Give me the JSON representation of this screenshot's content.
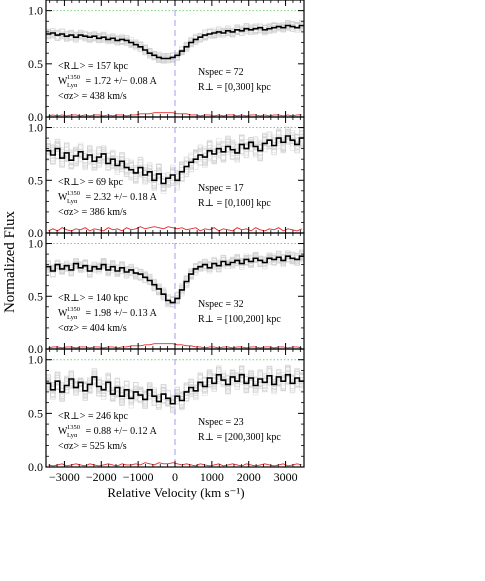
{
  "chart_data": [
    {
      "type": "line",
      "panel": 1,
      "ylabel": "Normalized Flux",
      "xlabel": "Relative Velocity (km s⁻¹)",
      "xlim": [
        -3500,
        3500
      ],
      "ylim": [
        0,
        1.1
      ],
      "yticks": [
        "0.0",
        "0.5",
        "1.0"
      ],
      "annotations": {
        "r": "<R⊥> = 157 kpc",
        "w": "W1350 = 1.72 +/− 0.08 A",
        "w_sup": "1350",
        "w_sub": "Lyα",
        "sigma": "<σz> = 438 km/s",
        "nspec": "Nspec = 72",
        "range": "R⊥ = [0,300] kpc"
      },
      "series": [
        {
          "values": [
            0.78,
            0.79,
            0.77,
            0.78,
            0.76,
            0.77,
            0.75,
            0.77,
            0.76,
            0.75,
            0.76,
            0.74,
            0.75,
            0.73,
            0.74,
            0.72,
            0.73,
            0.72,
            0.7,
            0.68,
            0.66,
            0.63,
            0.6,
            0.58,
            0.56,
            0.55,
            0.55,
            0.56,
            0.58,
            0.62,
            0.66,
            0.7,
            0.73,
            0.75,
            0.77,
            0.78,
            0.79,
            0.8,
            0.79,
            0.81,
            0.8,
            0.82,
            0.81,
            0.83,
            0.82,
            0.83,
            0.84,
            0.82,
            0.83,
            0.84,
            0.85,
            0.84,
            0.86,
            0.85,
            0.84,
            0.86
          ]
        },
        {
          "values": [
            0.01,
            0.02,
            0.01,
            0.02,
            0.01,
            0.02,
            0.02,
            0.01,
            0.02,
            0.01,
            0.02,
            0.02,
            0.01,
            0.02,
            0.01,
            0.02,
            0.02,
            0.01,
            0.02,
            0.02,
            0.03,
            0.03,
            0.03,
            0.04,
            0.04,
            0.04,
            0.04,
            0.04,
            0.03,
            0.03,
            0.03,
            0.02,
            0.02,
            0.01,
            0.02,
            0.02,
            0.01,
            0.02,
            0.01,
            0.02,
            0.02,
            0.01,
            0.02,
            0.01,
            0.02,
            0.02,
            0.01,
            0.02,
            0.01,
            0.02,
            0.02,
            0.01,
            0.02,
            0.01,
            0.02,
            0.02
          ]
        }
      ]
    },
    {
      "type": "line",
      "panel": 2,
      "ylim": [
        0,
        1.1
      ],
      "yticks": [
        "0.0",
        "0.5",
        "1.0"
      ],
      "annotations": {
        "r": "<R⊥> = 69 kpc",
        "w": "W1350 = 2.32 +/− 0.18 A",
        "w_sup": "1350",
        "w_sub": "Lyα",
        "sigma": "<σz> = 386 km/s",
        "nspec": "Nspec = 17",
        "range": "R⊥ = [0,100] kpc"
      },
      "series": [
        {
          "values": [
            0.78,
            0.74,
            0.8,
            0.71,
            0.76,
            0.69,
            0.73,
            0.77,
            0.7,
            0.74,
            0.68,
            0.72,
            0.75,
            0.66,
            0.7,
            0.64,
            0.68,
            0.62,
            0.6,
            0.57,
            0.62,
            0.55,
            0.58,
            0.5,
            0.56,
            0.47,
            0.52,
            0.55,
            0.5,
            0.58,
            0.63,
            0.67,
            0.7,
            0.74,
            0.72,
            0.78,
            0.75,
            0.8,
            0.77,
            0.82,
            0.79,
            0.76,
            0.84,
            0.8,
            0.86,
            0.82,
            0.78,
            0.85,
            0.88,
            0.83,
            0.9,
            0.86,
            0.92,
            0.88,
            0.84,
            0.9
          ]
        },
        {
          "values": [
            0.02,
            0.04,
            0.02,
            0.05,
            0.03,
            0.02,
            0.04,
            0.03,
            0.05,
            0.02,
            0.04,
            0.03,
            0.02,
            0.05,
            0.03,
            0.04,
            0.02,
            0.05,
            0.03,
            0.04,
            0.06,
            0.04,
            0.05,
            0.06,
            0.05,
            0.04,
            0.06,
            0.05,
            0.04,
            0.05,
            0.03,
            0.04,
            0.05,
            0.02,
            0.04,
            0.03,
            0.05,
            0.02,
            0.04,
            0.03,
            0.02,
            0.05,
            0.03,
            0.04,
            0.02,
            0.05,
            0.03,
            0.02,
            0.04,
            0.03,
            0.05,
            0.02,
            0.04,
            0.03,
            0.02,
            0.04
          ]
        }
      ]
    },
    {
      "type": "line",
      "panel": 3,
      "ylim": [
        0,
        1.1
      ],
      "yticks": [
        "0.0",
        "0.5",
        "1.0"
      ],
      "annotations": {
        "r": "<R⊥> = 140 kpc",
        "w": "W1350 = 1.98 +/− 0.13 A",
        "w_sup": "1350",
        "w_sub": "Lyα",
        "sigma": "<σz> = 404 km/s",
        "nspec": "Nspec = 32",
        "range": "R⊥ = [100,200] kpc"
      },
      "series": [
        {
          "values": [
            0.78,
            0.74,
            0.8,
            0.76,
            0.79,
            0.75,
            0.81,
            0.77,
            0.79,
            0.74,
            0.78,
            0.76,
            0.8,
            0.75,
            0.78,
            0.74,
            0.77,
            0.73,
            0.75,
            0.72,
            0.71,
            0.68,
            0.65,
            0.61,
            0.57,
            0.52,
            0.46,
            0.44,
            0.48,
            0.56,
            0.64,
            0.71,
            0.76,
            0.78,
            0.8,
            0.77,
            0.81,
            0.79,
            0.83,
            0.8,
            0.82,
            0.84,
            0.81,
            0.85,
            0.83,
            0.86,
            0.84,
            0.82,
            0.86,
            0.85,
            0.87,
            0.84,
            0.88,
            0.86,
            0.85,
            0.88
          ]
        },
        {
          "values": [
            0.01,
            0.02,
            0.02,
            0.01,
            0.02,
            0.02,
            0.01,
            0.02,
            0.02,
            0.01,
            0.02,
            0.02,
            0.01,
            0.02,
            0.02,
            0.01,
            0.02,
            0.02,
            0.03,
            0.03,
            0.03,
            0.04,
            0.04,
            0.05,
            0.05,
            0.05,
            0.05,
            0.05,
            0.04,
            0.04,
            0.03,
            0.03,
            0.02,
            0.02,
            0.01,
            0.02,
            0.02,
            0.01,
            0.02,
            0.02,
            0.01,
            0.02,
            0.02,
            0.01,
            0.02,
            0.02,
            0.01,
            0.02,
            0.02,
            0.01,
            0.02,
            0.02,
            0.01,
            0.02,
            0.02,
            0.01
          ]
        }
      ]
    },
    {
      "type": "line",
      "panel": 4,
      "ylim": [
        0,
        1.1
      ],
      "yticks": [
        "0.0",
        "0.5",
        "1.0"
      ],
      "xticks": [
        -3000,
        -2000,
        -1000,
        0,
        1000,
        2000,
        3000
      ],
      "xticklabels": [
        "−3000",
        "−2000",
        "−1000",
        "0",
        "1000",
        "2000",
        "3000"
      ],
      "annotations": {
        "r": "<R⊥> = 246 kpc",
        "w": "W1350 = 0.88 +/− 0.12 A",
        "w_sup": "1350",
        "w_sub": "Lyα",
        "sigma": "<σz> = 525 km/s",
        "nspec": "Nspec = 23",
        "range": "R⊥ = [200,300] kpc"
      },
      "series": [
        {
          "values": [
            0.78,
            0.72,
            0.8,
            0.7,
            0.76,
            0.82,
            0.74,
            0.79,
            0.71,
            0.77,
            0.84,
            0.75,
            0.72,
            0.79,
            0.68,
            0.74,
            0.66,
            0.72,
            0.64,
            0.7,
            0.67,
            0.63,
            0.72,
            0.66,
            0.61,
            0.68,
            0.64,
            0.59,
            0.66,
            0.62,
            0.7,
            0.74,
            0.71,
            0.79,
            0.75,
            0.83,
            0.78,
            0.86,
            0.81,
            0.77,
            0.84,
            0.8,
            0.86,
            0.78,
            0.83,
            0.76,
            0.82,
            0.79,
            0.85,
            0.77,
            0.84,
            0.8,
            0.86,
            0.78,
            0.83,
            0.8
          ]
        },
        {
          "values": [
            0.02,
            0.01,
            0.02,
            0.03,
            0.01,
            0.02,
            0.03,
            0.02,
            0.01,
            0.03,
            0.02,
            0.01,
            0.02,
            0.03,
            0.02,
            0.01,
            0.03,
            0.02,
            0.02,
            0.03,
            0.02,
            0.04,
            0.03,
            0.02,
            0.04,
            0.03,
            0.03,
            0.04,
            0.03,
            0.02,
            0.03,
            0.02,
            0.01,
            0.03,
            0.02,
            0.01,
            0.02,
            0.03,
            0.01,
            0.02,
            0.03,
            0.02,
            0.01,
            0.03,
            0.02,
            0.01,
            0.02,
            0.03,
            0.02,
            0.01,
            0.02,
            0.03,
            0.01,
            0.02,
            0.03,
            0.02
          ]
        }
      ]
    }
  ],
  "colors": {
    "mean_spectrum": "#000000",
    "noise": "#e8282b",
    "bootstrap": "#cfcfcf",
    "continuum_dotted": "#7ccf7c",
    "zero_velocity": "#a9a4ee"
  }
}
